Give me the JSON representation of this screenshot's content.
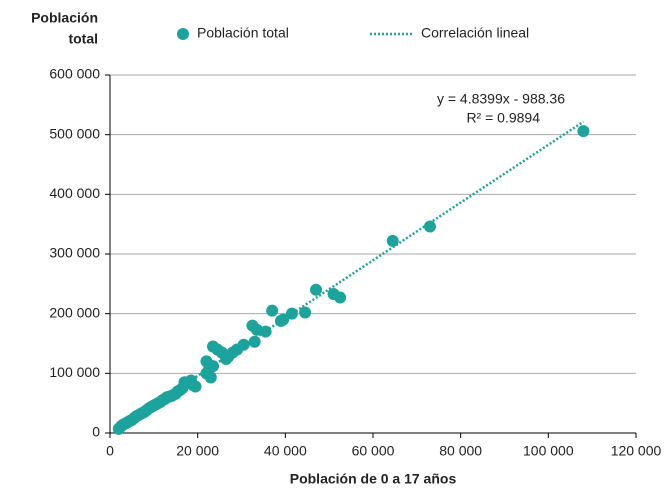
{
  "chart_data": {
    "type": "scatter",
    "y_label_lines": [
      "Población",
      "total"
    ],
    "x_label": "Población de 0 a 17 años",
    "series": [
      {
        "name": "Población total",
        "color": "#1ba39c",
        "x": [
          108000,
          73000,
          64500,
          52500,
          51000,
          47000,
          44500,
          41500,
          39000,
          39500,
          37000,
          35500,
          33000,
          32500,
          33500,
          30500,
          29000,
          28000,
          27000,
          26500,
          25500,
          24500,
          23500,
          23500,
          23000,
          22500,
          22000,
          22000,
          19500,
          19000,
          18500,
          18000,
          17000,
          16500,
          16000,
          15500,
          15000,
          14500,
          14000,
          13500,
          13000,
          12500,
          12000,
          11500,
          11000,
          10500,
          10000,
          9500,
          9000,
          8500,
          8000,
          7500,
          7000,
          6500,
          6000,
          5500,
          5000,
          4500,
          4000,
          3500,
          3000,
          2500,
          2000
        ],
        "values": [
          506000,
          346000,
          322000,
          227000,
          233000,
          240000,
          202000,
          200000,
          188000,
          190000,
          205000,
          170000,
          153000,
          180000,
          173000,
          148000,
          140000,
          135000,
          128000,
          124000,
          135000,
          140000,
          145000,
          112000,
          93000,
          105000,
          100000,
          120000,
          78000,
          80000,
          88000,
          84000,
          85000,
          75000,
          72000,
          70000,
          66000,
          64000,
          62000,
          61000,
          60000,
          57000,
          55000,
          52000,
          50000,
          48000,
          46000,
          44000,
          42000,
          39000,
          36000,
          34000,
          32000,
          30000,
          28000,
          25000,
          22000,
          20000,
          18000,
          16000,
          14000,
          11000,
          7000
        ]
      }
    ],
    "trendline": {
      "name": "Correlación lineal",
      "color": "#1ba39c",
      "x": [
        2000,
        108000
      ],
      "values": [
        8692,
        521721
      ]
    },
    "annotations": [
      "y = 4.8399x - 988.36",
      "R² = 0.9894"
    ],
    "xlim": [
      0,
      120000
    ],
    "xticks": [
      0,
      {
        "value": 20000,
        "label": "20 000"
      },
      {
        "value": 40000,
        "label": "40 000"
      },
      {
        "value": 60000,
        "label": "60 000"
      },
      {
        "value": 80000,
        "label": "80 000"
      },
      {
        "value": 100000,
        "label": "100 000"
      },
      {
        "value": 120000,
        "label": "120 000"
      }
    ],
    "ylim": [
      0,
      600000
    ],
    "yticks": [
      0,
      {
        "value": 100000,
        "label": "100 000"
      },
      {
        "value": 200000,
        "label": "200 000"
      },
      {
        "value": 300000,
        "label": "300 000"
      },
      {
        "value": 400000,
        "label": "400 000"
      },
      {
        "value": 500000,
        "label": "500 000"
      },
      {
        "value": 600000,
        "label": "600 000"
      }
    ],
    "grid": true
  }
}
